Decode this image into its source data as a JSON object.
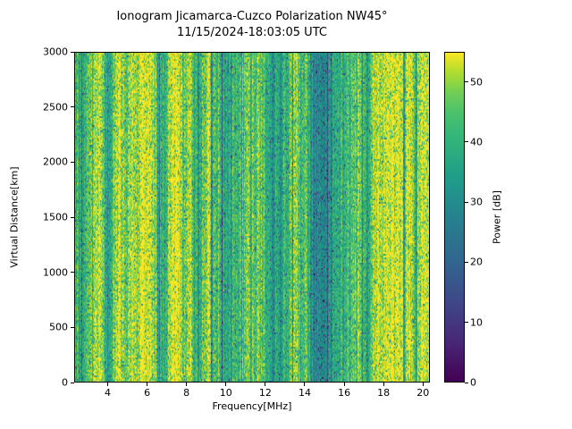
{
  "chart_data": {
    "type": "heatmap",
    "title": "Ionogram Jicamarca-Cuzco Polarization NW45°",
    "subtitle": "11/15/2024-18:03:05 UTC",
    "xlabel": "Frequency[MHz]",
    "ylabel": "Virtual Distance[km]",
    "colorbar_label": "Power [dB]",
    "colormap": "viridis",
    "x_range_mhz": [
      2.3,
      20.35
    ],
    "y_range_km": [
      0,
      3000
    ],
    "power_range_db": [
      0,
      55
    ],
    "x_ticks": [
      4,
      6,
      8,
      10,
      12,
      14,
      16,
      18,
      20
    ],
    "y_ticks": [
      0,
      500,
      1000,
      1500,
      2000,
      2500,
      3000
    ],
    "colorbar_ticks": [
      0,
      10,
      20,
      30,
      40,
      50
    ],
    "background_power_db": 54,
    "absorption_bands": [
      {
        "center_mhz": 2.6,
        "width_mhz": 1.0,
        "dip_db": 15
      },
      {
        "center_mhz": 4.05,
        "width_mhz": 0.5,
        "dip_db": 17
      },
      {
        "center_mhz": 4.9,
        "width_mhz": 0.35,
        "dip_db": 9
      },
      {
        "center_mhz": 5.5,
        "width_mhz": 0.3,
        "dip_db": 6
      },
      {
        "center_mhz": 6.8,
        "width_mhz": 0.6,
        "dip_db": 15
      },
      {
        "center_mhz": 7.9,
        "width_mhz": 0.3,
        "dip_db": 7
      },
      {
        "center_mhz": 8.55,
        "width_mhz": 0.5,
        "dip_db": 15
      },
      {
        "center_mhz": 10.1,
        "width_mhz": 1.2,
        "dip_db": 17
      },
      {
        "center_mhz": 11.3,
        "width_mhz": 0.4,
        "dip_db": 8
      },
      {
        "center_mhz": 12.5,
        "width_mhz": 1.4,
        "dip_db": 20
      },
      {
        "center_mhz": 14.6,
        "width_mhz": 1.0,
        "dip_db": 14
      },
      {
        "center_mhz": 15.3,
        "width_mhz": 2.2,
        "dip_db": 18
      },
      {
        "center_mhz": 17.15,
        "width_mhz": 0.5,
        "dip_db": 16
      },
      {
        "center_mhz": 19.6,
        "width_mhz": 0.3,
        "dip_db": 7
      }
    ],
    "noise": {
      "column_jitter_db": 8,
      "cell_jitter_db": 14,
      "speckle_prob": 0.1,
      "speckle_dip_db": [
        8,
        25
      ],
      "dark_column_prob": 0.06,
      "dark_column_dip_db": [
        8,
        22
      ]
    },
    "viridis_anchors": [
      [
        0.0,
        68,
        1,
        84
      ],
      [
        0.125,
        72,
        40,
        120
      ],
      [
        0.25,
        62,
        74,
        137
      ],
      [
        0.375,
        49,
        104,
        142
      ],
      [
        0.5,
        38,
        130,
        142
      ],
      [
        0.625,
        31,
        158,
        137
      ],
      [
        0.75,
        53,
        183,
        121
      ],
      [
        0.8125,
        74,
        193,
        109
      ],
      [
        0.875,
        110,
        206,
        88
      ],
      [
        0.9375,
        173,
        220,
        48
      ],
      [
        1.0,
        253,
        231,
        37
      ]
    ]
  }
}
